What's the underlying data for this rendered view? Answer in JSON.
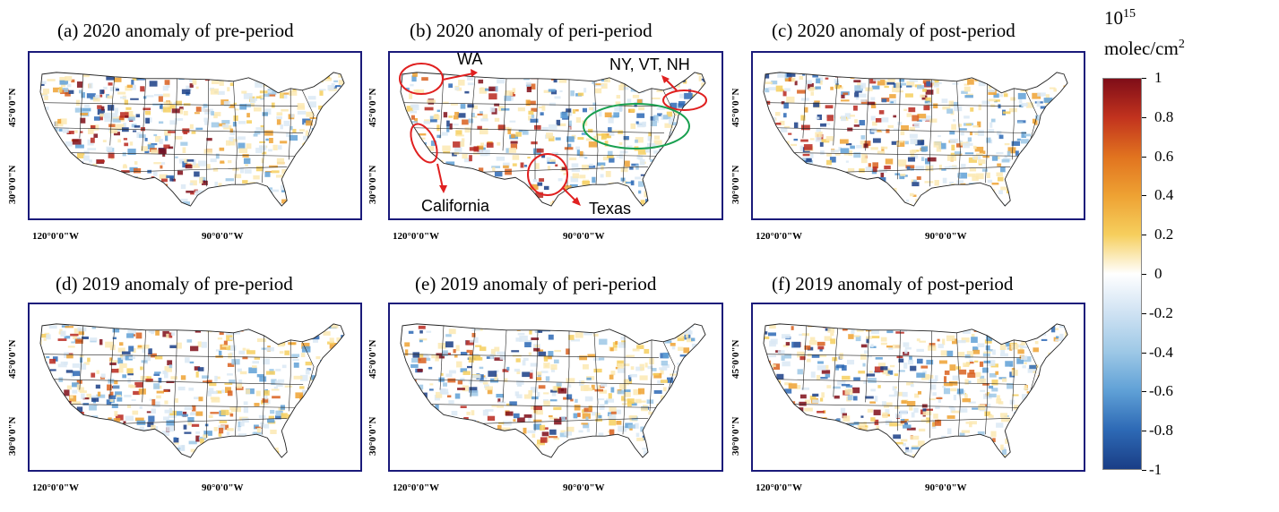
{
  "panels": [
    {
      "id": "a",
      "title": "(a) 2020 anomaly of pre-period",
      "lat_label": "45°0'0\"N",
      "lat_label2": "30°0'0\"N",
      "lon_label": "120°0'0\"W",
      "lon_label2": "90°0'0\"W"
    },
    {
      "id": "b",
      "title": "(b) 2020 anomaly of peri-period",
      "lat_label": "45°0'0\"N",
      "lat_label2": "30°0'0\"N",
      "lon_label": "120°0'0\"W",
      "lon_label2": "90°0'0\"W"
    },
    {
      "id": "c",
      "title": "(c) 2020 anomaly of post-period",
      "lat_label": "45°0'0\"N",
      "lat_label2": "30°0'0\"N",
      "lon_label": "120°0'0\"W",
      "lon_label2": "90°0'0\"W"
    },
    {
      "id": "d",
      "title": "(d) 2019 anomaly of pre-period",
      "lat_label": "45°0'0\"N",
      "lat_label2": "30°0'0\"N",
      "lon_label": "120°0'0\"W",
      "lon_label2": "90°0'0\"W"
    },
    {
      "id": "e",
      "title": "(e) 2019 anomaly of peri-period",
      "lat_label": "45°0'0\"N",
      "lat_label2": "30°0'0\"N",
      "lon_label": "120°0'0\"W",
      "lon_label2": "90°0'0\"W"
    },
    {
      "id": "f",
      "title": "(f) 2019 anomaly of post-period",
      "lat_label": "45°0'0\"N",
      "lat_label2": "30°0'0\"N",
      "lon_label": "120°0'0\"W",
      "lon_label2": "90°0'0\"W"
    }
  ],
  "annotations": {
    "wa": "WA",
    "ny": "NY, VT, NH",
    "california": "California",
    "texas": "Texas"
  },
  "colorbar": {
    "unit_line1": "10",
    "unit_exp": "15",
    "unit_line2": "molec/cm",
    "unit_exp2": "2",
    "ticks": [
      "1",
      "0.8",
      "0.6",
      "0.4",
      "0.2",
      "0",
      "-0.2",
      "-0.4",
      "-0.6",
      "-0.8",
      "-1"
    ],
    "colors": {
      "max": "#7f0d18",
      "mid": "#ffffff",
      "min": "#1a3e86"
    }
  }
}
